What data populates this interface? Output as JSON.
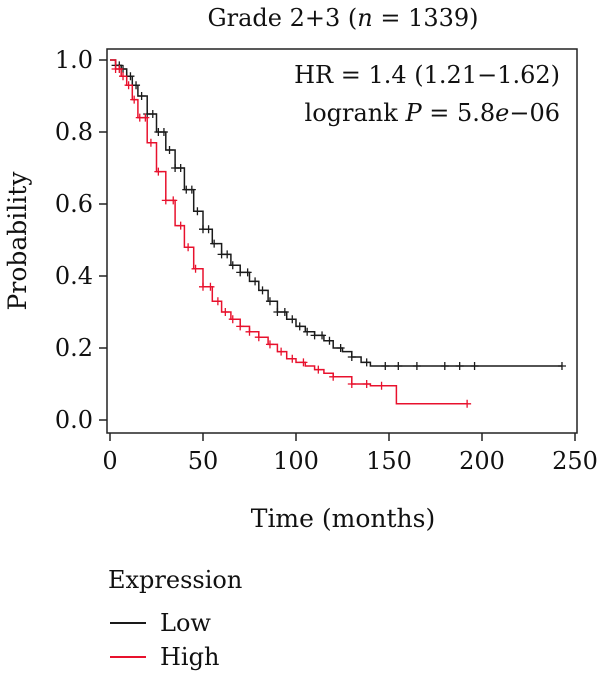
{
  "chart_data": {
    "type": "line",
    "subtype": "kaplan-meier",
    "title": "Grade 2+3 (n = 1339)",
    "title_parts": {
      "prefix": "Grade 2+3 (",
      "n_symbol": "n",
      "suffix": " = 1339)"
    },
    "xlabel": "Time (months)",
    "ylabel": "Probability",
    "xlim": [
      0,
      250
    ],
    "ylim": [
      0,
      1.0
    ],
    "xticks": [
      0,
      50,
      100,
      150,
      200,
      250
    ],
    "yticks": [
      0.0,
      0.2,
      0.4,
      0.6,
      0.8,
      1.0
    ],
    "ytick_labels": [
      "0.0",
      "0.2",
      "0.4",
      "0.6",
      "0.8",
      "1.0"
    ],
    "grid": false,
    "annotations": {
      "hr": "HR = 1.4 (1.21−1.62)",
      "logrank_prefix": "logrank ",
      "logrank_p_symbol": "P",
      "logrank_value_a": " = 5.8",
      "logrank_value_e": "e",
      "logrank_value_b": "−06"
    },
    "legend": {
      "title": "Expression",
      "placement": "bottom-left"
    },
    "series": [
      {
        "name": "Low",
        "color": "#1a1a1a",
        "x": [
          0,
          3,
          6,
          9,
          12,
          15,
          20,
          25,
          30,
          35,
          40,
          45,
          50,
          55,
          60,
          65,
          70,
          75,
          80,
          85,
          90,
          95,
          100,
          105,
          110,
          115,
          120,
          125,
          130,
          135,
          140,
          150,
          160,
          180,
          200,
          220,
          243
        ],
        "y": [
          1.0,
          0.985,
          0.975,
          0.955,
          0.93,
          0.9,
          0.85,
          0.8,
          0.75,
          0.7,
          0.64,
          0.58,
          0.53,
          0.49,
          0.46,
          0.43,
          0.41,
          0.385,
          0.36,
          0.33,
          0.3,
          0.28,
          0.26,
          0.245,
          0.235,
          0.22,
          0.2,
          0.19,
          0.175,
          0.16,
          0.15,
          0.15,
          0.15,
          0.15,
          0.15,
          0.15,
          0.15
        ],
        "censor_x": [
          3,
          5,
          7,
          9,
          11,
          14,
          17,
          20,
          23,
          26,
          29,
          32,
          35,
          38,
          41,
          44,
          47,
          50,
          53,
          56,
          60,
          63,
          66,
          70,
          74,
          78,
          82,
          86,
          90,
          94,
          98,
          102,
          106,
          110,
          114,
          118,
          124,
          130,
          138,
          148,
          155,
          165,
          180,
          188,
          196,
          243
        ]
      },
      {
        "name": "High",
        "color": "#e8112d",
        "x": [
          0,
          3,
          6,
          9,
          12,
          15,
          20,
          25,
          30,
          35,
          40,
          45,
          50,
          55,
          60,
          65,
          70,
          75,
          80,
          85,
          90,
          95,
          100,
          105,
          110,
          115,
          120,
          130,
          140,
          153,
          154,
          170,
          192
        ],
        "y": [
          1.0,
          0.975,
          0.955,
          0.93,
          0.89,
          0.84,
          0.77,
          0.69,
          0.61,
          0.54,
          0.48,
          0.42,
          0.37,
          0.33,
          0.3,
          0.28,
          0.26,
          0.245,
          0.23,
          0.21,
          0.19,
          0.17,
          0.16,
          0.15,
          0.14,
          0.13,
          0.12,
          0.1,
          0.095,
          0.095,
          0.045,
          0.045,
          0.045
        ],
        "censor_x": [
          3,
          5,
          7,
          10,
          13,
          16,
          19,
          22,
          26,
          30,
          34,
          38,
          42,
          46,
          50,
          54,
          58,
          62,
          66,
          70,
          75,
          80,
          86,
          92,
          98,
          104,
          112,
          120,
          130,
          138,
          146,
          192
        ]
      }
    ]
  }
}
